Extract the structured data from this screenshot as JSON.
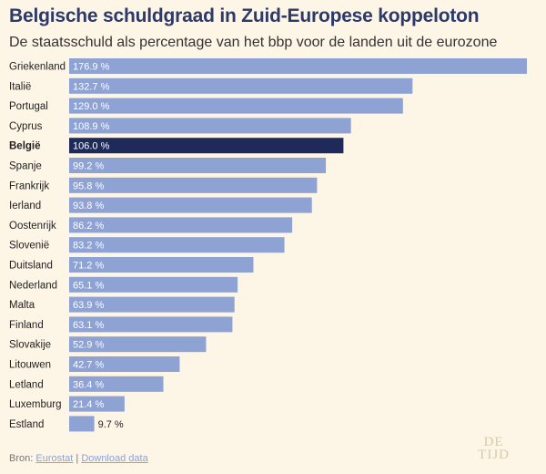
{
  "header": {
    "title": "Belgische schuldgraad in Zuid-Europese koppeloton",
    "subtitle": "De staatsschuld als percentage van het bbp voor de landen uit de eurozone"
  },
  "footer": {
    "source_label": "Bron:",
    "source_link": "Eurostat",
    "separator": "|",
    "download_link": "Download data",
    "logo_top": "DE",
    "logo_bottom": "TIJD"
  },
  "colors": {
    "bar": "#8fa2d4",
    "highlight": "#1e2a5a",
    "background": "#fdf5e6"
  },
  "chart_data": {
    "type": "bar",
    "orientation": "horizontal",
    "title": "Belgische schuldgraad in Zuid-Europese koppeloton",
    "subtitle": "De staatsschuld als percentage van het bbp voor de landen uit de eurozone",
    "categories": [
      "Griekenland",
      "Italië",
      "Portugal",
      "Cyprus",
      "België",
      "Spanje",
      "Frankrijk",
      "Ierland",
      "Oostenrijk",
      "Slovenië",
      "Duitsland",
      "Nederland",
      "Malta",
      "Finland",
      "Slovakije",
      "Litouwen",
      "Letland",
      "Luxemburg",
      "Estland"
    ],
    "values": [
      176.9,
      132.7,
      129.0,
      108.9,
      106.0,
      99.2,
      95.8,
      93.8,
      86.2,
      83.2,
      71.2,
      65.1,
      63.9,
      63.1,
      52.9,
      42.7,
      36.4,
      21.4,
      9.7
    ],
    "value_labels": [
      "176.9 %",
      "132.7 %",
      "129.0 %",
      "108.9 %",
      "106.0 %",
      "99.2 %",
      "95.8 %",
      "93.8 %",
      "86.2 %",
      "83.2 %",
      "71.2 %",
      "65.1 %",
      "63.9 %",
      "63.1 %",
      "52.9 %",
      "42.7 %",
      "36.4 %",
      "21.4 %",
      "9.7 %"
    ],
    "highlight": "België",
    "xlim": [
      0,
      176.9
    ],
    "xlabel": "",
    "ylabel": "",
    "grid": false,
    "legend": "none"
  }
}
